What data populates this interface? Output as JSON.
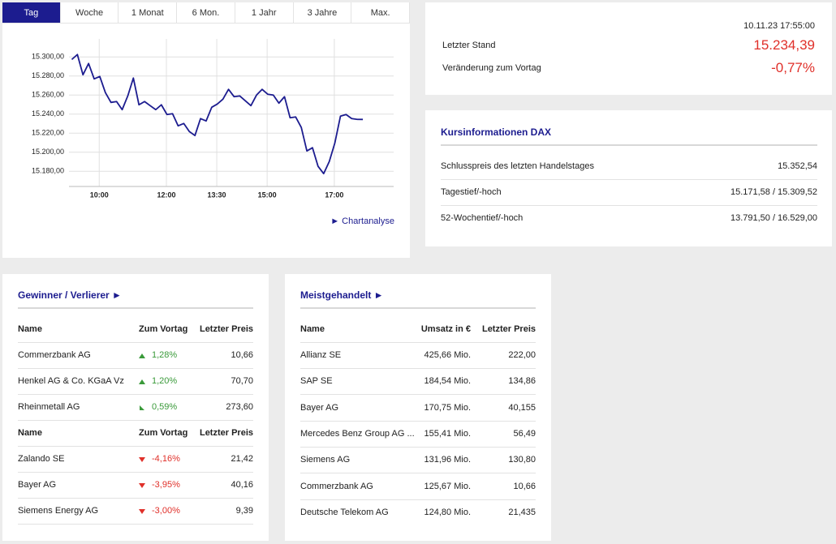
{
  "tabs": [
    "Tag",
    "Woche",
    "1 Monat",
    "6 Mon.",
    "1 Jahr",
    "3 Jahre",
    "Max."
  ],
  "chart_data": {
    "type": "line",
    "x": [
      551,
      561,
      571,
      581,
      591,
      601,
      611,
      621,
      631,
      641,
      651,
      661,
      671,
      681,
      691,
      701,
      711,
      721,
      731,
      741,
      751,
      761,
      771,
      781,
      791,
      801,
      811,
      821,
      831,
      841,
      851,
      861,
      871,
      881,
      891,
      901,
      911,
      921,
      931,
      941,
      951,
      961,
      971,
      981,
      991,
      1001,
      1011,
      1021,
      1031,
      1041,
      1051,
      1061,
      1071
    ],
    "values": [
      15297.4,
      15302.6,
      15281.3,
      15293.2,
      15277.0,
      15279.6,
      15262.6,
      15252.3,
      15253.2,
      15244.7,
      15259.1,
      15277.9,
      15249.8,
      15253.2,
      15248.9,
      15244.7,
      15249.8,
      15239.6,
      15240.4,
      15227.7,
      15230.2,
      15221.7,
      15217.5,
      15235.3,
      15232.8,
      15247.2,
      15250.6,
      15255.7,
      15266.0,
      15258.3,
      15259.1,
      15254.0,
      15248.9,
      15260.0,
      15266.0,
      15260.9,
      15260.0,
      15251.5,
      15258.3,
      15236.2,
      15237.0,
      15226.0,
      15201.3,
      15204.7,
      15185.1,
      15177.5,
      15190.2,
      15209.8,
      15237.9,
      15239.6,
      15235.3,
      15234.5,
      15234.4
    ],
    "color": "#1c1c8f",
    "xlim": [
      546,
      1126
    ],
    "xticks": [
      {
        "value": 600,
        "label": "10:00"
      },
      {
        "value": 720,
        "label": "12:00"
      },
      {
        "value": 810,
        "label": "13:30"
      },
      {
        "value": 900,
        "label": "15:00"
      },
      {
        "value": 1020,
        "label": "17:00"
      }
    ],
    "ylim": [
      15164,
      15319
    ],
    "yticks": [
      {
        "value": 15180,
        "label": "15.180,00"
      },
      {
        "value": 15200,
        "label": "15.200,00"
      },
      {
        "value": 15220,
        "label": "15.220,00"
      },
      {
        "value": 15240,
        "label": "15.240,00"
      },
      {
        "value": 15260,
        "label": "15.260,00"
      },
      {
        "value": 15280,
        "label": "15.280,00"
      },
      {
        "value": 15300,
        "label": "15.300,00"
      }
    ],
    "grid": true
  },
  "chart_link": "► Chartanalyse",
  "quote": {
    "timestamp": "10.11.23 17:55:00",
    "rows": [
      [
        "Letzter Stand",
        "15.234,39"
      ],
      [
        "Veränderung zum Vortag",
        "-0,77%"
      ]
    ]
  },
  "kurs": {
    "title": "Kursinformationen DAX",
    "rows": [
      [
        "Schlusspreis des letzten Handelstages",
        "15.352,54"
      ],
      [
        "Tagestief/-hoch",
        "15.171,58 / 15.309,52"
      ],
      [
        "52-Wochentief/-hoch",
        "13.791,50 / 16.529,00"
      ]
    ]
  },
  "movers": {
    "title": "Gewinner / Verlierer ►",
    "sections": [
      {
        "header": [
          "Name",
          "Zum Vortag",
          "Letzter Preis"
        ],
        "rows": [
          [
            "Commerzbank AG",
            "1,28%",
            "10,66"
          ],
          [
            "Henkel AG & Co. KGaA Vz",
            "1,20%",
            "70,70"
          ],
          [
            "Rheinmetall AG",
            "0,59%",
            "273,60"
          ]
        ]
      },
      {
        "header": [
          "Name",
          "Zum Vortag",
          "Letzter Preis"
        ],
        "rows": [
          [
            "Zalando SE",
            "-4,16%",
            "21,42"
          ],
          [
            "Bayer AG",
            "-3,95%",
            "40,16"
          ],
          [
            "Siemens Energy AG",
            "-3,00%",
            "9,39"
          ]
        ]
      }
    ]
  },
  "most_traded": {
    "title": "Meistgehandelt ►",
    "header": [
      "Name",
      "Umsatz in €",
      "Letzter Preis"
    ],
    "rows": [
      [
        "Allianz SE",
        "425,66 Mio.",
        "222,00"
      ],
      [
        "SAP SE",
        "184,54 Mio.",
        "134,86"
      ],
      [
        "Bayer AG",
        "170,75 Mio.",
        "40,155"
      ],
      [
        "Mercedes Benz Group AG ...",
        "155,41 Mio.",
        "56,49"
      ],
      [
        "Siemens AG",
        "131,96 Mio.",
        "130,80"
      ],
      [
        "Commerzbank AG",
        "125,67 Mio.",
        "10,66"
      ],
      [
        "Deutsche Telekom AG",
        "124,80 Mio.",
        "21,435"
      ]
    ]
  }
}
